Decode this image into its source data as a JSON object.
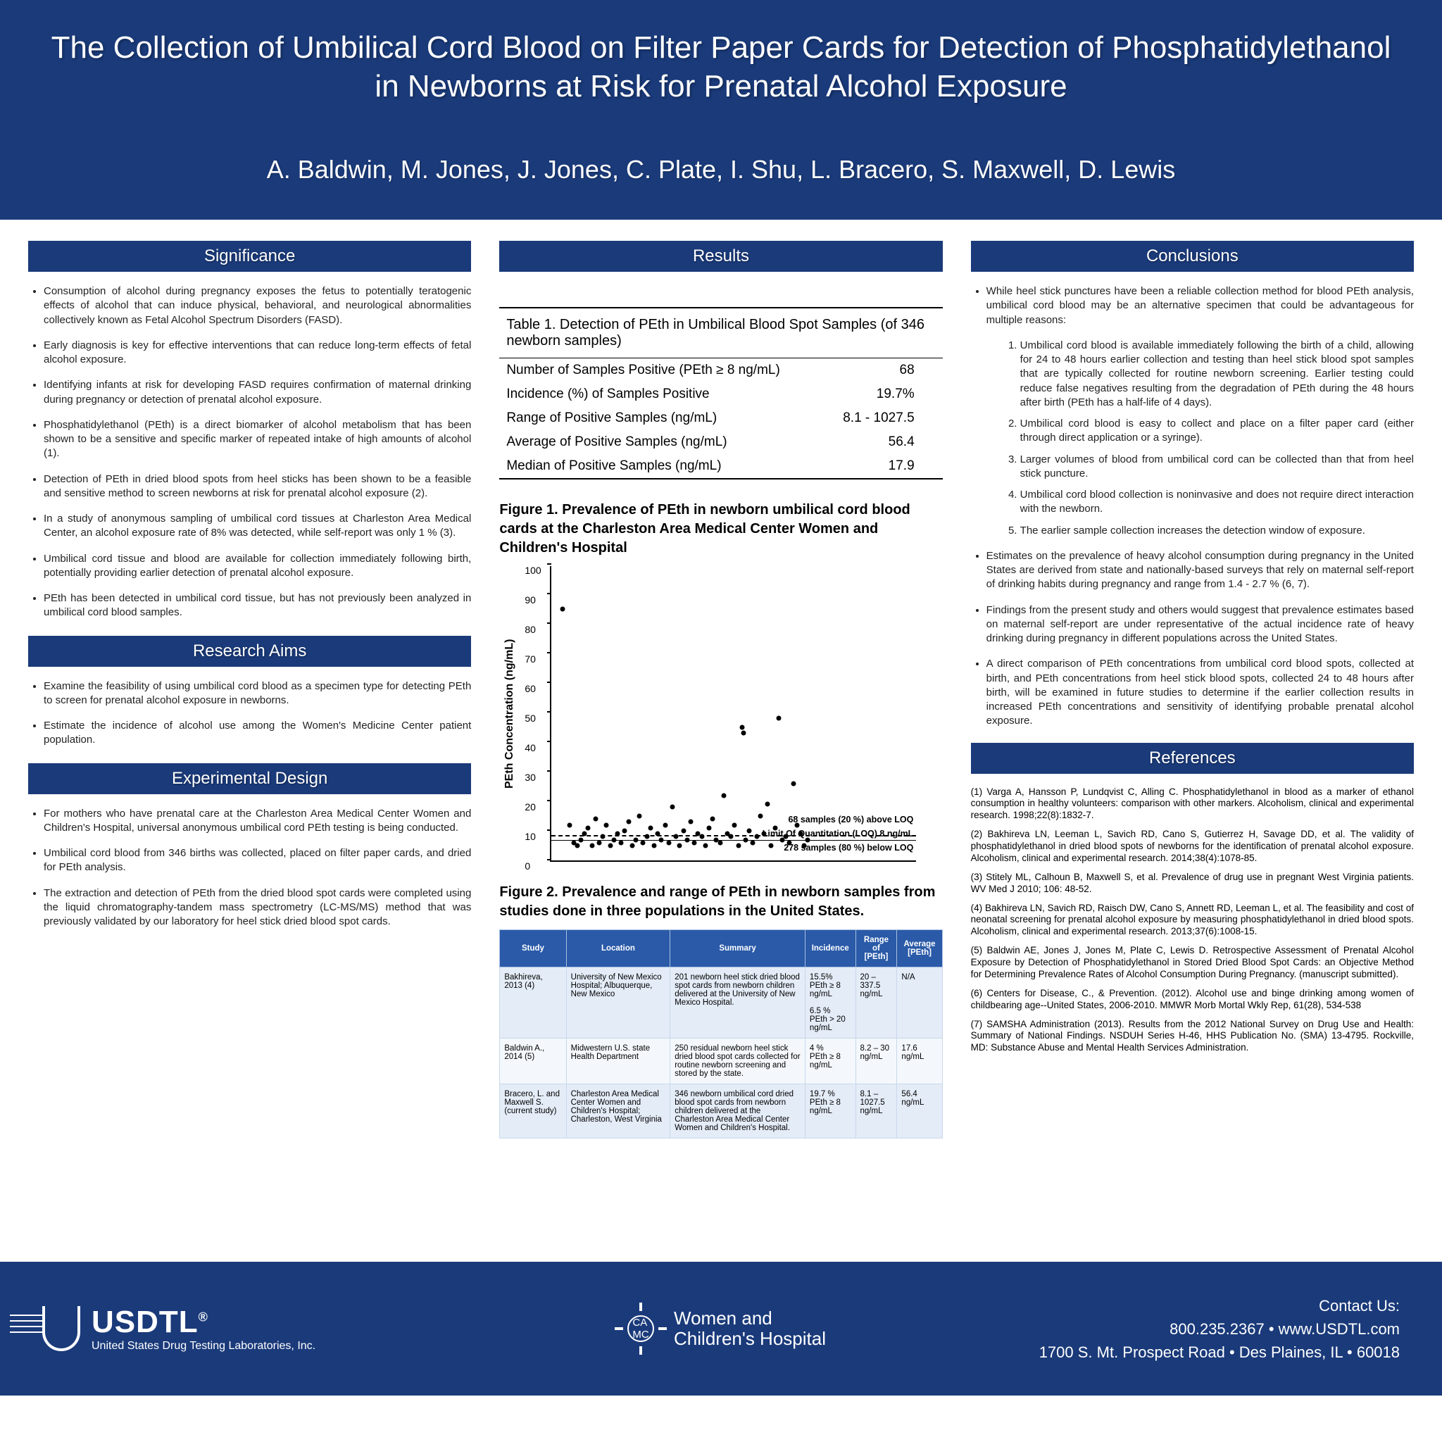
{
  "colors": {
    "blue": "#1a3a7a",
    "tableHeaderBlue": "#2a5aa8",
    "white": "#ffffff"
  },
  "header": {
    "title": "The Collection of Umbilical Cord Blood on Filter Paper Cards for Detection of Phosphatidylethanol in Newborns at Risk for Prenatal Alcohol Exposure",
    "authors": "A. Baldwin, M. Jones, J. Jones, C. Plate, I. Shu, L. Bracero, S. Maxwell, D. Lewis"
  },
  "significance": {
    "heading": "Significance",
    "bullets": [
      "Consumption of alcohol during pregnancy exposes the fetus to potentially teratogenic effects of alcohol that can induce physical, behavioral, and neurological abnormalities collectively known as Fetal Alcohol Spectrum Disorders (FASD).",
      "Early diagnosis is key for effective interventions that can reduce long-term effects of fetal alcohol exposure.",
      "Identifying infants at risk for developing FASD requires confirmation of maternal drinking during pregnancy or detection of prenatal alcohol exposure.",
      "Phosphatidylethanol (PEth) is a direct biomarker of alcohol metabolism that has been shown to be a sensitive and specific marker of repeated intake of high amounts of alcohol (1).",
      "Detection of PEth in dried blood spots from heel sticks has been shown to be a feasible and sensitive method to screen newborns at risk for prenatal alcohol exposure (2).",
      "In a study of anonymous sampling of umbilical cord tissues at Charleston Area Medical Center, an alcohol exposure rate of 8% was detected, while self-report was only 1 % (3).",
      "Umbilical cord tissue and blood are available for collection immediately following birth, potentially providing earlier detection of prenatal alcohol exposure.",
      "PEth has been detected in umbilical cord tissue, but has not previously been analyzed in umbilical cord blood samples."
    ]
  },
  "aims": {
    "heading": "Research Aims",
    "bullets": [
      "Examine the feasibility of using umbilical cord blood as a specimen type for detecting PEth to screen for prenatal alcohol exposure in newborns.",
      "Estimate the incidence of alcohol use among the Women's Medicine Center patient population."
    ]
  },
  "design": {
    "heading": "Experimental Design",
    "bullets": [
      "For mothers who have prenatal care at the Charleston Area Medical Center Women and Children's Hospital, universal anonymous umbilical cord PEth testing is being conducted.",
      "Umbilical cord blood from 346 births was collected, placed on filter paper cards, and dried for PEth analysis.",
      "The extraction and detection of PEth from the dried blood spot cards were completed using the liquid chromatography-tandem mass spectrometry (LC-MS/MS) method that was previously validated by our laboratory for heel stick dried blood spot cards."
    ]
  },
  "results": {
    "heading": "Results",
    "table1": {
      "title": "Table 1. Detection of PEth in Umbilical Blood Spot Samples (of 346 newborn samples)",
      "rows": [
        {
          "label": "Number of Samples Positive (PEth ≥ 8 ng/mL)",
          "value": "68"
        },
        {
          "label": "Incidence (%) of Samples Positive",
          "value": "19.7%"
        },
        {
          "label": "Range of Positive Samples (ng/mL)",
          "value": "8.1 - 1027.5"
        },
        {
          "label": "Average of Positive Samples (ng/mL)",
          "value": "56.4"
        },
        {
          "label": "Median of Positive Samples (ng/mL)",
          "value": "17.9"
        }
      ]
    },
    "fig1": {
      "title": "Figure 1. Prevalence of PEth in newborn umbilical cord blood cards  at the Charleston Area Medical Center Women and Children's Hospital",
      "ylabel": "PEth Concentration (ng/mL)",
      "ylim": [
        0,
        100
      ],
      "yticks": [
        0,
        10,
        20,
        30,
        40,
        50,
        60,
        70,
        80,
        90,
        100
      ],
      "loq_value": 8,
      "annotations": {
        "above": "68 samples (20 %) above LOQ",
        "loq": "Limit Of Quantitation (LOQ) 8 ng/mL",
        "below": "278 samples (80 %) below LOQ"
      },
      "points": [
        {
          "x": 0.03,
          "y": 85
        },
        {
          "x": 0.05,
          "y": 12
        },
        {
          "x": 0.06,
          "y": 6
        },
        {
          "x": 0.07,
          "y": 5
        },
        {
          "x": 0.08,
          "y": 7
        },
        {
          "x": 0.09,
          "y": 9
        },
        {
          "x": 0.1,
          "y": 11
        },
        {
          "x": 0.11,
          "y": 5
        },
        {
          "x": 0.12,
          "y": 14
        },
        {
          "x": 0.13,
          "y": 6
        },
        {
          "x": 0.14,
          "y": 8
        },
        {
          "x": 0.15,
          "y": 12
        },
        {
          "x": 0.16,
          "y": 5
        },
        {
          "x": 0.17,
          "y": 7
        },
        {
          "x": 0.18,
          "y": 9
        },
        {
          "x": 0.19,
          "y": 6
        },
        {
          "x": 0.2,
          "y": 10
        },
        {
          "x": 0.21,
          "y": 13
        },
        {
          "x": 0.22,
          "y": 5
        },
        {
          "x": 0.23,
          "y": 7
        },
        {
          "x": 0.24,
          "y": 15
        },
        {
          "x": 0.25,
          "y": 6
        },
        {
          "x": 0.26,
          "y": 8
        },
        {
          "x": 0.27,
          "y": 11
        },
        {
          "x": 0.28,
          "y": 5
        },
        {
          "x": 0.29,
          "y": 9
        },
        {
          "x": 0.3,
          "y": 7
        },
        {
          "x": 0.31,
          "y": 12
        },
        {
          "x": 0.32,
          "y": 6
        },
        {
          "x": 0.33,
          "y": 18
        },
        {
          "x": 0.34,
          "y": 8
        },
        {
          "x": 0.35,
          "y": 5
        },
        {
          "x": 0.36,
          "y": 10
        },
        {
          "x": 0.37,
          "y": 7
        },
        {
          "x": 0.38,
          "y": 13
        },
        {
          "x": 0.39,
          "y": 6
        },
        {
          "x": 0.4,
          "y": 9
        },
        {
          "x": 0.41,
          "y": 8
        },
        {
          "x": 0.42,
          "y": 5
        },
        {
          "x": 0.43,
          "y": 11
        },
        {
          "x": 0.44,
          "y": 14
        },
        {
          "x": 0.45,
          "y": 7
        },
        {
          "x": 0.46,
          "y": 6
        },
        {
          "x": 0.47,
          "y": 22
        },
        {
          "x": 0.48,
          "y": 9
        },
        {
          "x": 0.49,
          "y": 8
        },
        {
          "x": 0.5,
          "y": 12
        },
        {
          "x": 0.51,
          "y": 5
        },
        {
          "x": 0.52,
          "y": 45
        },
        {
          "x": 0.525,
          "y": 43
        },
        {
          "x": 0.53,
          "y": 7
        },
        {
          "x": 0.54,
          "y": 10
        },
        {
          "x": 0.55,
          "y": 6
        },
        {
          "x": 0.56,
          "y": 8
        },
        {
          "x": 0.57,
          "y": 15
        },
        {
          "x": 0.58,
          "y": 9
        },
        {
          "x": 0.59,
          "y": 19
        },
        {
          "x": 0.6,
          "y": 5
        },
        {
          "x": 0.61,
          "y": 11
        },
        {
          "x": 0.62,
          "y": 48
        },
        {
          "x": 0.63,
          "y": 7
        },
        {
          "x": 0.64,
          "y": 8
        },
        {
          "x": 0.65,
          "y": 6
        },
        {
          "x": 0.66,
          "y": 26
        },
        {
          "x": 0.67,
          "y": 12
        },
        {
          "x": 0.68,
          "y": 9
        },
        {
          "x": 0.69,
          "y": 5
        },
        {
          "x": 0.7,
          "y": 7
        }
      ]
    },
    "fig2": {
      "title": "Figure 2. Prevalence and range of PEth in newborn  samples from studies done in three populations in the United States.",
      "columns": [
        "Study",
        "Location",
        "Summary",
        "Incidence",
        "Range of [PEth]",
        "Average [PEth]"
      ],
      "rows": [
        {
          "study": "Bakhireva, 2013 (4)",
          "location": "University of New Mexico Hospital; Albuquerque, New Mexico",
          "summary": "201 newborn heel stick dried blood spot cards from newborn children delivered at the University of New Mexico Hospital.",
          "incidence": "15.5%\nPEth ≥ 8 ng/mL\n\n6.5 %\nPEth > 20 ng/mL",
          "range": "20 – 337.5 ng/mL",
          "avg": "N/A"
        },
        {
          "study": "Baldwin A., 2014 (5)",
          "location": "Midwestern U.S. state Health Department",
          "summary": "250 residual newborn heel stick dried blood spot cards collected for routine newborn screening and stored by the state.",
          "incidence": "4 %\nPEth ≥ 8 ng/mL",
          "range": "8.2  – 30 ng/mL",
          "avg": "17.6 ng/mL"
        },
        {
          "study": "Bracero, L. and Maxwell S. (current study)",
          "location": "Charleston Area Medical Center Women and Children's Hospital; Charleston, West Virginia",
          "summary": "346 newborn umbilical cord dried blood spot cards from newborn children delivered at the Charleston Area Medical Center Women and Children's Hospital.",
          "incidence": "19.7 %\nPEth ≥ 8 ng/mL",
          "range": "8.1 – 1027.5 ng/mL",
          "avg": "56.4 ng/mL"
        }
      ]
    }
  },
  "conclusions": {
    "heading": "Conclusions",
    "intro": "While heel stick punctures have been a reliable collection method for blood PEth analysis, umbilical cord blood may be an alternative specimen that could be advantageous for multiple reasons:",
    "numbered": [
      "Umbilical cord blood is available immediately following the birth of a child, allowing for 24 to 48 hours earlier collection and testing than heel stick blood spot samples that are typically collected for routine newborn screening.  Earlier testing could reduce false negatives resulting from the degradation of PEth during the 48 hours after birth (PEth has a half-life of 4 days).",
      "Umbilical cord blood is easy to collect and place on a filter paper card (either through direct application or a syringe).",
      "Larger volumes of blood from umbilical cord can be collected than that from heel stick puncture.",
      "Umbilical cord blood collection is noninvasive and does not require direct interaction with the newborn.",
      "The earlier sample collection increases the detection window of exposure."
    ],
    "bullets": [
      "Estimates on the prevalence of heavy alcohol consumption during pregnancy in the United States are derived from state and nationally-based surveys that rely on maternal self-report of drinking habits during pregnancy and range from 1.4 - 2.7 % (6, 7).",
      "Findings from the present study and others would suggest that prevalence estimates based on maternal self-report are under representative of the actual incidence rate of heavy drinking during pregnancy in different populations across the United States.",
      "A direct comparison of PEth concentrations from umbilical cord blood spots, collected at birth, and PEth concentrations from heel stick blood spots, collected 24 to 48 hours after birth, will be examined in future studies to determine if the earlier collection results in increased PEth concentrations and sensitivity of identifying probable prenatal alcohol exposure."
    ]
  },
  "references": {
    "heading": "References",
    "items": [
      "(1) Varga A, Hansson P, Lundqvist C, Alling C. Phosphatidylethanol in blood as a marker of ethanol consumption in healthy volunteers: comparison with other markers. Alcoholism, clinical and experimental research. 1998;22(8):1832-7.",
      "(2) Bakhireva LN, Leeman L, Savich RD, Cano S, Gutierrez H, Savage DD, et al. The validity of phosphatidylethanol in dried blood spots of newborns for the identification of prenatal alcohol exposure. Alcoholism, clinical and experimental research. 2014;38(4):1078-85.",
      "(3) Stitely ML, Calhoun B, Maxwell S, et al. Prevalence of drug use in pregnant West Virginia patients. WV Med J 2010; 106: 48-52.",
      "(4) Bakhireva LN, Savich RD, Raisch DW, Cano S, Annett RD, Leeman L, et al. The feasibility and cost of neonatal screening for prenatal alcohol exposure by measuring phosphatidylethanol in dried blood spots. Alcoholism, clinical and experimental research. 2013;37(6):1008-15.",
      "(5) Baldwin AE,  Jones J, Jones M, Plate C, Lewis D. Retrospective Assessment of Prenatal Alcohol Exposure by Detection of Phosphatidylethanol in Stored Dried Blood Spot Cards: an Objective Method for Determining Prevalence Rates of Alcohol Consumption During Pregnancy. (manuscript submitted).",
      "(6) Centers for Disease, C., & Prevention. (2012). Alcohol use and binge drinking among women of childbearing age--United States, 2006-2010. MMWR Morb Mortal Wkly Rep, 61(28), 534-538",
      "(7) SAMSHA Administration (2013). Results from the 2012 National Survey on Drug Use and Health: Summary of National Findings. NSDUH Series H-46, HHS Publication No. (SMA) 13-4795. Rockville, MD: Substance Abuse and Mental Health Services Administration."
    ]
  },
  "footer": {
    "usdtl_name": "USDTL",
    "usdtl_sub": "United States Drug Testing Laboratories, Inc.",
    "wch": "Women and\nChildren's Hospital",
    "contact_heading": "Contact Us:",
    "contact_line1": "800.235.2367 • www.USDTL.com",
    "contact_line2": "1700 S. Mt. Prospect Road • Des Plaines, IL • 60018",
    "reg": "®"
  }
}
